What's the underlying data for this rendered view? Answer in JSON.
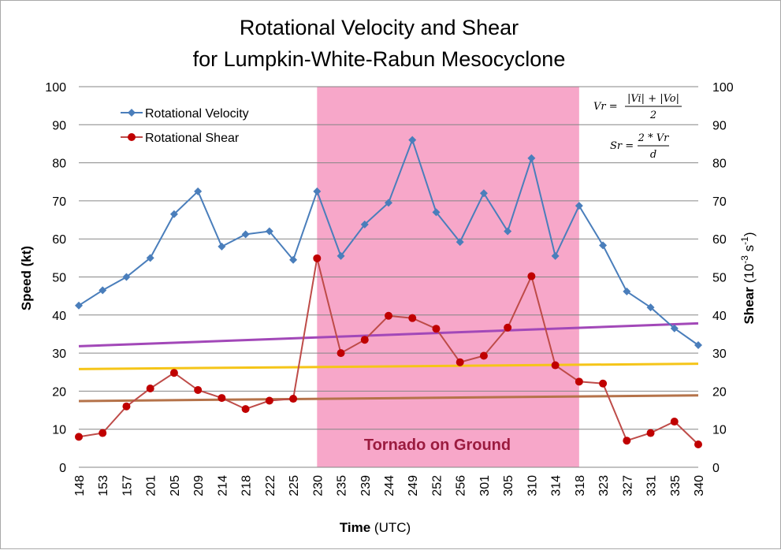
{
  "chart_data": {
    "type": "line",
    "title": [
      "Rotational Velocity and Shear",
      "for Lumpkin-White-Rabun Mesocyclone"
    ],
    "xlabel_bold": "Time",
    "xlabel_rest": " (UTC)",
    "ylabel": "Speed (kt)",
    "y2label_bold": "Shear",
    "y2label_rest": "(10",
    "y2label_exp": "-3",
    "y2label_unit": " s",
    "y2label_exp2": "-1",
    "y2label_close": ")",
    "ylim": [
      0,
      100
    ],
    "y2lim": [
      0,
      100
    ],
    "yticks": [
      0,
      10,
      20,
      30,
      40,
      50,
      60,
      70,
      80,
      90,
      100
    ],
    "categories": [
      "148",
      "153",
      "157",
      "201",
      "205",
      "209",
      "214",
      "218",
      "222",
      "225",
      "230",
      "235",
      "239",
      "244",
      "249",
      "252",
      "256",
      "301",
      "305",
      "310",
      "314",
      "318",
      "323",
      "327",
      "331",
      "335",
      "340"
    ],
    "series": [
      {
        "name": "Rotational Velocity",
        "color": "#4a7ebb",
        "marker": "diamond",
        "values": [
          42.5,
          46.5,
          50,
          55,
          66.5,
          72.5,
          58,
          61.2,
          62,
          54.5,
          72.5,
          55.5,
          63.8,
          69.5,
          86,
          67,
          59.2,
          72,
          62,
          81.2,
          55.5,
          68.7,
          58.3,
          46.2,
          42,
          36.5,
          32.1
        ]
      },
      {
        "name": "Rotational Shear",
        "color": "#be4b48",
        "marker": "circle",
        "axis": "right",
        "values": [
          8,
          9,
          16,
          20.7,
          24.8,
          20.3,
          18.2,
          15.3,
          17.5,
          18,
          54.9,
          30,
          33.5,
          39.8,
          39.2,
          36.4,
          27.6,
          29.3,
          36.7,
          50.2,
          26.8,
          22.5,
          22,
          7,
          9,
          12,
          6
        ]
      }
    ],
    "reference_lines": [
      {
        "color": "#a248b8",
        "start": 31.8,
        "end": 37.8
      },
      {
        "color": "#f5c518",
        "start": 25.8,
        "end": 27.2
      },
      {
        "color": "#b5734a",
        "start": 17.4,
        "end": 18.9
      }
    ],
    "shaded_region": {
      "from": "230",
      "to": "318",
      "color": "#f7a7c9",
      "label": "Tornado on Ground"
    },
    "formulas": {
      "vr_lhs": "Vr =",
      "vr_num": "|Vi| + |Vo|",
      "vr_den": "2",
      "sr_lhs": "Sr =",
      "sr_num": "2 * Vr",
      "sr_den": "d"
    },
    "legend_position": "top-left",
    "grid": true
  }
}
